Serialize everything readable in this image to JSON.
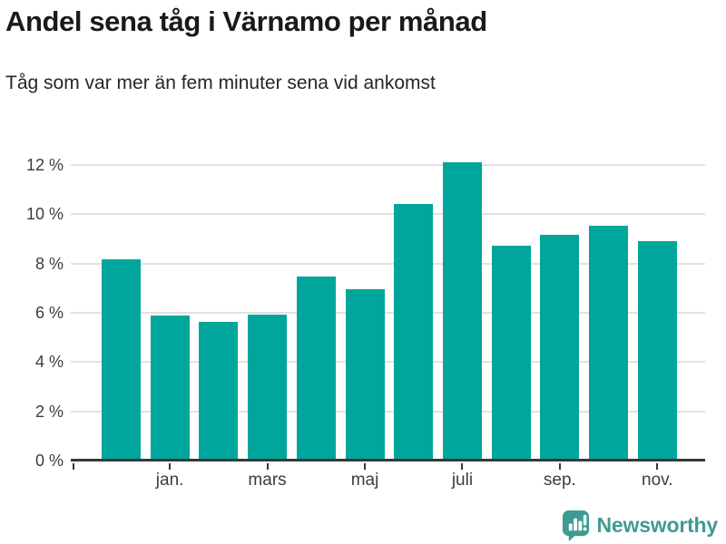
{
  "header": {
    "title": "Andel sena tåg i Värnamo per månad",
    "subtitle": "Tåg som var mer än fem minuter sena vid ankomst"
  },
  "chart_data": {
    "type": "bar",
    "title": "Andel sena tåg i Värnamo per månad",
    "subtitle": "Tåg som var mer än fem minuter sena vid ankomst",
    "unit": "%",
    "categories": [
      "",
      "jan.",
      "",
      "mars",
      "",
      "maj",
      "",
      "juli",
      "",
      "sep.",
      "",
      "nov."
    ],
    "values": [
      8.1,
      5.8,
      5.55,
      5.85,
      7.4,
      6.9,
      10.35,
      12.05,
      8.65,
      9.1,
      9.45,
      8.85
    ],
    "y_tick_labels": [
      "0 %",
      "2 %",
      "4 %",
      "6 %",
      "8 %",
      "10 %",
      "12 %"
    ],
    "y_tick_values": [
      0,
      2,
      4,
      6,
      8,
      10,
      12
    ],
    "ylim": [
      0,
      12
    ],
    "grid": true,
    "legend": "none",
    "xlabel": "",
    "ylabel": "",
    "bar_color": "#00a69b",
    "grid_color": "#e2e2e2",
    "axis_color": "#383838",
    "label_color": "#3d3d3d"
  },
  "footer": {
    "brand": "Newsworthy",
    "brand_color": "#3f9b91"
  }
}
